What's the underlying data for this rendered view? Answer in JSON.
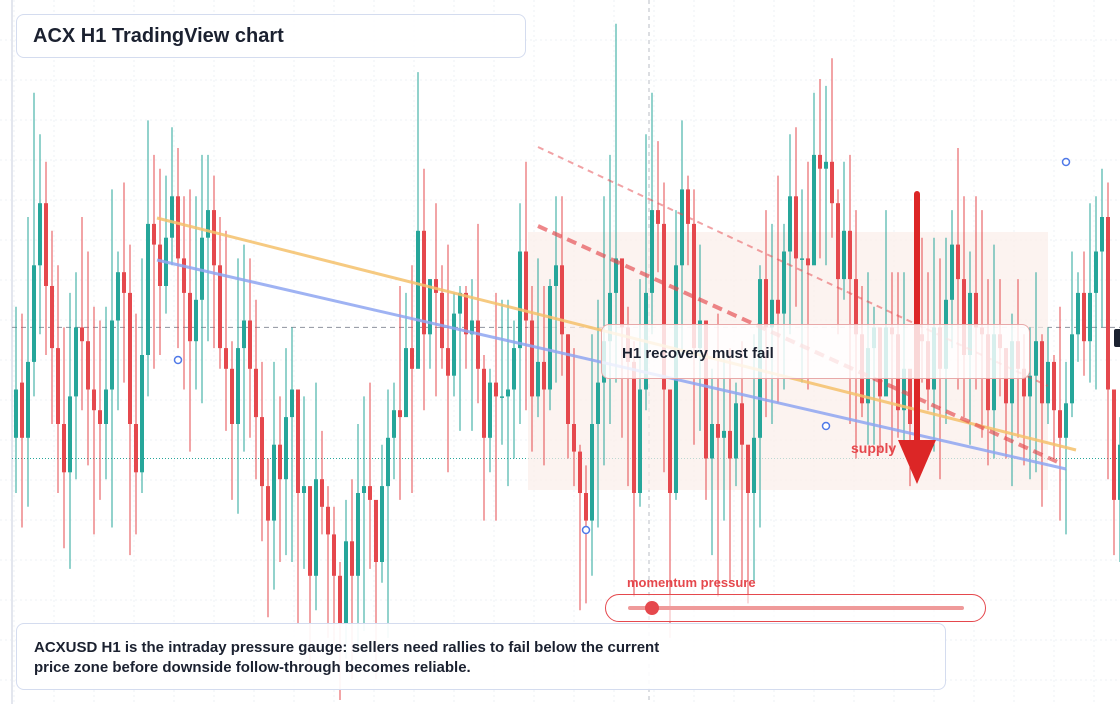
{
  "title": "ACX H1 TradingView chart",
  "caption": "ACXUSD H1 is the intraday pressure gauge: sellers need rallies to fail below the current price zone before downside follow-through becomes reliable.",
  "callout": "H1 recovery must fail",
  "supply_label": "supply",
  "momentum": {
    "label": "momentum pressure",
    "level": 0.07
  },
  "colors": {
    "up": "#26a69a",
    "down": "#e5484d",
    "resistance_line": "#f5c16c",
    "trend_line": "#8fa6f2",
    "bearish_channel": "#e5484d",
    "supply_zone": "#fbeee9",
    "arrow": "#dc2626"
  },
  "chart_data": {
    "type": "candlestick",
    "timeframe": "H1",
    "symbol": "ACXUSD",
    "ylim": [
      0,
      100
    ],
    "grid": true,
    "current_price": 35,
    "reference_level": 54,
    "candles": [
      [
        38,
        45,
        57,
        30
      ],
      [
        46,
        38,
        56,
        25
      ],
      [
        38,
        49,
        70,
        28
      ],
      [
        49,
        63,
        88,
        44
      ],
      [
        63,
        72,
        82,
        53
      ],
      [
        72,
        60,
        78,
        50
      ],
      [
        60,
        51,
        68,
        40
      ],
      [
        51,
        40,
        63,
        30
      ],
      [
        40,
        33,
        54,
        22
      ],
      [
        33,
        44,
        59,
        19
      ],
      [
        44,
        54,
        62,
        32
      ],
      [
        54,
        52,
        70,
        42
      ],
      [
        52,
        45,
        65,
        34
      ],
      [
        45,
        42,
        57,
        24
      ],
      [
        42,
        40,
        55,
        29
      ],
      [
        40,
        45,
        57,
        32
      ],
      [
        45,
        55,
        74,
        25
      ],
      [
        55,
        62,
        65,
        42
      ],
      [
        62,
        59,
        75,
        46
      ],
      [
        59,
        40,
        66,
        21
      ],
      [
        40,
        33,
        56,
        24
      ],
      [
        33,
        50,
        64,
        30
      ],
      [
        50,
        69,
        84,
        44
      ],
      [
        69,
        66,
        79,
        48
      ],
      [
        66,
        60,
        77,
        50
      ],
      [
        60,
        67,
        76,
        56
      ],
      [
        67,
        73,
        83,
        63
      ],
      [
        73,
        64,
        80,
        51
      ],
      [
        64,
        59,
        73,
        45
      ],
      [
        59,
        52,
        74,
        36
      ],
      [
        52,
        58,
        73,
        45
      ],
      [
        58,
        67,
        79,
        43
      ],
      [
        67,
        71,
        79,
        52
      ],
      [
        71,
        63,
        76,
        51
      ],
      [
        63,
        51,
        70,
        48
      ],
      [
        51,
        48,
        68,
        39
      ],
      [
        48,
        40,
        52,
        29
      ],
      [
        40,
        51,
        64,
        27
      ],
      [
        51,
        55,
        66,
        36
      ],
      [
        55,
        48,
        64,
        38
      ],
      [
        48,
        41,
        58,
        32
      ],
      [
        41,
        31,
        49,
        23
      ],
      [
        31,
        26,
        35,
        12
      ],
      [
        26,
        37,
        49,
        16
      ],
      [
        37,
        32,
        44,
        20
      ],
      [
        32,
        41,
        51,
        21
      ],
      [
        41,
        45,
        54,
        20
      ],
      [
        45,
        30,
        37,
        11
      ],
      [
        30,
        31,
        44,
        19
      ],
      [
        31,
        18,
        26,
        4
      ],
      [
        18,
        32,
        46,
        13
      ],
      [
        32,
        28,
        39,
        24
      ],
      [
        28,
        24,
        31,
        9
      ],
      [
        24,
        18,
        28,
        7
      ],
      [
        18,
        11,
        20,
        0
      ],
      [
        11,
        23,
        29,
        6
      ],
      [
        23,
        18,
        32,
        3
      ],
      [
        18,
        30,
        40,
        7
      ],
      [
        30,
        31,
        44,
        10
      ],
      [
        31,
        29,
        46,
        19
      ],
      [
        29,
        20,
        26,
        3
      ],
      [
        20,
        31,
        37,
        17
      ],
      [
        31,
        38,
        45,
        9
      ],
      [
        38,
        42,
        46,
        32
      ],
      [
        42,
        41,
        60,
        29
      ],
      [
        41,
        51,
        59,
        42
      ],
      [
        51,
        48,
        63,
        30
      ],
      [
        48,
        68,
        91,
        54
      ],
      [
        68,
        53,
        77,
        42
      ],
      [
        53,
        61,
        61,
        48
      ],
      [
        61,
        59,
        72,
        44
      ],
      [
        59,
        51,
        63,
        48
      ],
      [
        51,
        47,
        66,
        33
      ],
      [
        47,
        56,
        59,
        44
      ],
      [
        56,
        59,
        60,
        39
      ],
      [
        59,
        53,
        60,
        48
      ],
      [
        53,
        55,
        61,
        39
      ],
      [
        55,
        48,
        69,
        43
      ],
      [
        48,
        38,
        50,
        26
      ],
      [
        38,
        46,
        48,
        33
      ],
      [
        46,
        44,
        59,
        26
      ],
      [
        44,
        44,
        58,
        37
      ],
      [
        44,
        45,
        58,
        31
      ],
      [
        45,
        51,
        55,
        35
      ],
      [
        51,
        65,
        72,
        40
      ],
      [
        65,
        55,
        78,
        42
      ],
      [
        55,
        44,
        60,
        36
      ],
      [
        44,
        49,
        64,
        41
      ],
      [
        49,
        45,
        60,
        34
      ],
      [
        45,
        60,
        61,
        42
      ],
      [
        60,
        63,
        73,
        46
      ],
      [
        63,
        53,
        73,
        47
      ],
      [
        53,
        40,
        53,
        35
      ],
      [
        40,
        36,
        51,
        31
      ],
      [
        36,
        30,
        37,
        13
      ],
      [
        30,
        26,
        34,
        14
      ],
      [
        26,
        40,
        53,
        18
      ],
      [
        40,
        46,
        58,
        25
      ],
      [
        46,
        52,
        73,
        34
      ],
      [
        52,
        59,
        79,
        40
      ],
      [
        59,
        64,
        98,
        46
      ],
      [
        64,
        54,
        62,
        38
      ],
      [
        54,
        49,
        57,
        31
      ],
      [
        49,
        30,
        52,
        15
      ],
      [
        30,
        45,
        61,
        28
      ],
      [
        45,
        59,
        82,
        42
      ],
      [
        59,
        71,
        88,
        53
      ],
      [
        71,
        69,
        81,
        62
      ],
      [
        69,
        45,
        75,
        33
      ],
      [
        45,
        30,
        41,
        9
      ],
      [
        30,
        63,
        71,
        29
      ],
      [
        63,
        74,
        84,
        50
      ],
      [
        74,
        69,
        76,
        63
      ],
      [
        69,
        51,
        74,
        37
      ],
      [
        51,
        55,
        66,
        39
      ],
      [
        55,
        35,
        44,
        29
      ],
      [
        35,
        40,
        48,
        21
      ],
      [
        40,
        38,
        56,
        15
      ],
      [
        38,
        39,
        50,
        26
      ],
      [
        39,
        35,
        51,
        17
      ],
      [
        35,
        43,
        46,
        31
      ],
      [
        43,
        37,
        52,
        17
      ],
      [
        37,
        30,
        36,
        14
      ],
      [
        30,
        38,
        53,
        17
      ],
      [
        38,
        61,
        63,
        25
      ],
      [
        61,
        54,
        71,
        41
      ],
      [
        54,
        58,
        69,
        40
      ],
      [
        58,
        56,
        76,
        43
      ],
      [
        56,
        65,
        69,
        45
      ],
      [
        65,
        73,
        82,
        53
      ],
      [
        73,
        64,
        83,
        57
      ],
      [
        64,
        64,
        74,
        46
      ],
      [
        64,
        63,
        78,
        45
      ],
      [
        63,
        79,
        88,
        69
      ],
      [
        79,
        77,
        90,
        64
      ],
      [
        77,
        78,
        89,
        63
      ],
      [
        78,
        72,
        93,
        67
      ],
      [
        72,
        61,
        74,
        53
      ],
      [
        61,
        68,
        78,
        58
      ],
      [
        68,
        61,
        79,
        40
      ],
      [
        61,
        53,
        71,
        35
      ],
      [
        53,
        43,
        60,
        41
      ],
      [
        43,
        51,
        62,
        37
      ],
      [
        51,
        54,
        57,
        37
      ],
      [
        54,
        44,
        52,
        36
      ],
      [
        44,
        54,
        71,
        45
      ],
      [
        54,
        53,
        62,
        36
      ],
      [
        53,
        42,
        62,
        38
      ],
      [
        42,
        48,
        62,
        37
      ],
      [
        48,
        40,
        47,
        31
      ],
      [
        40,
        53,
        59,
        37
      ],
      [
        53,
        52,
        67,
        46
      ],
      [
        52,
        45,
        62,
        42
      ],
      [
        45,
        54,
        67,
        36
      ],
      [
        54,
        48,
        64,
        32
      ],
      [
        48,
        58,
        67,
        40
      ],
      [
        58,
        66,
        71,
        51
      ],
      [
        66,
        61,
        80,
        45
      ],
      [
        61,
        50,
        73,
        41
      ],
      [
        50,
        59,
        65,
        37
      ],
      [
        59,
        54,
        73,
        45
      ],
      [
        54,
        53,
        71,
        38
      ],
      [
        53,
        42,
        61,
        34
      ],
      [
        42,
        53,
        66,
        35
      ],
      [
        53,
        51,
        61,
        44
      ],
      [
        51,
        43,
        51,
        35
      ],
      [
        43,
        52,
        56,
        31
      ],
      [
        52,
        48,
        61,
        38
      ],
      [
        48,
        44,
        53,
        34
      ],
      [
        44,
        47,
        54,
        32
      ],
      [
        47,
        52,
        62,
        33
      ],
      [
        52,
        43,
        53,
        28
      ],
      [
        43,
        49,
        54,
        40
      ],
      [
        49,
        42,
        50,
        35
      ],
      [
        42,
        38,
        57,
        26
      ],
      [
        38,
        43,
        49,
        24
      ],
      [
        43,
        53,
        65,
        41
      ],
      [
        53,
        59,
        62,
        49
      ],
      [
        59,
        52,
        65,
        47
      ],
      [
        52,
        59,
        72,
        46
      ],
      [
        59,
        65,
        73,
        45
      ],
      [
        65,
        70,
        77,
        54
      ],
      [
        70,
        45,
        75,
        32
      ],
      [
        45,
        29,
        39,
        21
      ],
      [
        29,
        37,
        41,
        20
      ]
    ],
    "annotations": [
      "H1 recovery must fail",
      "supply",
      "momentum pressure"
    ]
  }
}
